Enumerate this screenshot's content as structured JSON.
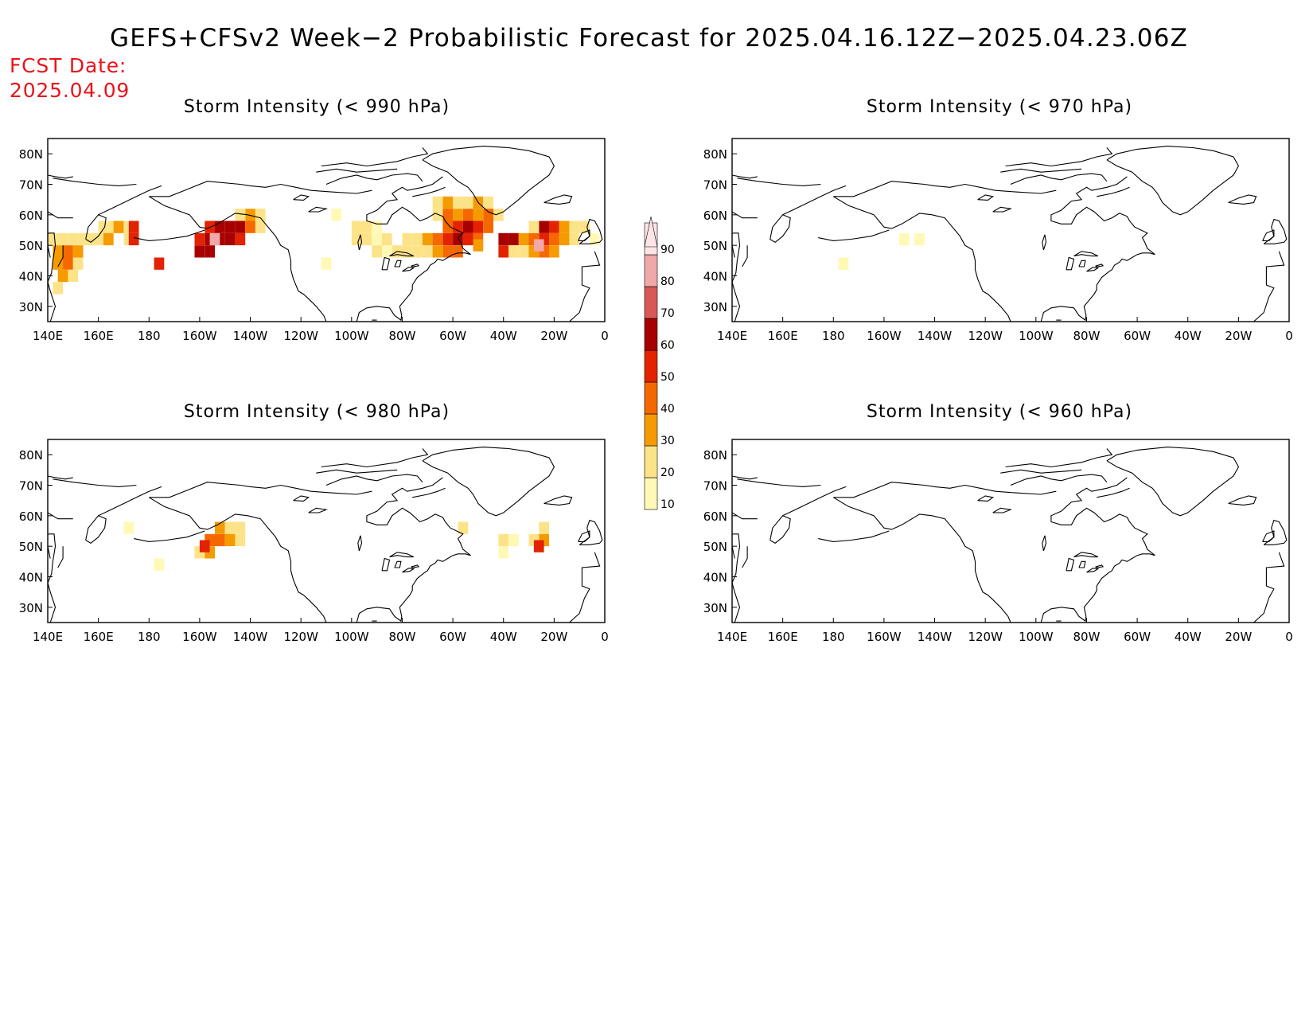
{
  "title": "GEFS+CFSv2 Week−2 Probabilistic Forecast for 2025.04.16.12Z−2025.04.23.06Z",
  "fcst_date_label": "FCST Date:",
  "fcst_date_value": "2025.04.09",
  "axes": {
    "x_ticks": [
      "140E",
      "160E",
      "180",
      "160W",
      "140W",
      "120W",
      "100W",
      "80W",
      "60W",
      "40W",
      "20W",
      "0"
    ],
    "x_tick_values": [
      140,
      160,
      180,
      200,
      220,
      240,
      260,
      280,
      300,
      320,
      340,
      360
    ],
    "y_ticks": [
      "30N",
      "40N",
      "50N",
      "60N",
      "70N",
      "80N"
    ],
    "y_tick_values": [
      30,
      40,
      50,
      60,
      70,
      80
    ],
    "lon_range": [
      140,
      360
    ],
    "lat_range": [
      25,
      85
    ]
  },
  "colorbar": {
    "levels": [
      "10",
      "20",
      "30",
      "40",
      "50",
      "60",
      "70",
      "80",
      "90"
    ],
    "colors": [
      "#fff9b5",
      "#fde388",
      "#f59b00",
      "#f56800",
      "#e32200",
      "#a80000",
      "#d85858",
      "#f1a8a8",
      "#fde5e5"
    ]
  },
  "panels": [
    {
      "id": "990",
      "title": "Storm Intensity (< 990 hPa)",
      "cells": [
        [
          142,
          52,
          20
        ],
        [
          146,
          52,
          20
        ],
        [
          150,
          52,
          20
        ],
        [
          154,
          52,
          20
        ],
        [
          158,
          52,
          20
        ],
        [
          162,
          56,
          20
        ],
        [
          166,
          56,
          20
        ],
        [
          170,
          56,
          20
        ],
        [
          144,
          48,
          30
        ],
        [
          148,
          48,
          40
        ],
        [
          152,
          48,
          30
        ],
        [
          156,
          52,
          20
        ],
        [
          160,
          52,
          20
        ],
        [
          164,
          52,
          30
        ],
        [
          168,
          56,
          30
        ],
        [
          172,
          52,
          20
        ],
        [
          144,
          44,
          30
        ],
        [
          148,
          44,
          40
        ],
        [
          152,
          44,
          20
        ],
        [
          146,
          40,
          30
        ],
        [
          150,
          40,
          20
        ],
        [
          144,
          36,
          20
        ],
        [
          174,
          56,
          50
        ],
        [
          174,
          52,
          50
        ],
        [
          184,
          44,
          50
        ],
        [
          200,
          48,
          60
        ],
        [
          204,
          48,
          60
        ],
        [
          204,
          52,
          60
        ],
        [
          208,
          52,
          60
        ],
        [
          208,
          56,
          60
        ],
        [
          212,
          56,
          60
        ],
        [
          216,
          56,
          60
        ],
        [
          212,
          52,
          60
        ],
        [
          200,
          52,
          50
        ],
        [
          204,
          56,
          50
        ],
        [
          216,
          52,
          50
        ],
        [
          220,
          56,
          40
        ],
        [
          220,
          60,
          30
        ],
        [
          216,
          60,
          20
        ],
        [
          224,
          60,
          20
        ],
        [
          224,
          56,
          20
        ],
        [
          206,
          52,
          80
        ],
        [
          250,
          44,
          10
        ],
        [
          262,
          56,
          20
        ],
        [
          262,
          52,
          20
        ],
        [
          266,
          56,
          20
        ],
        [
          270,
          56,
          10
        ],
        [
          266,
          52,
          20
        ],
        [
          270,
          52,
          10
        ],
        [
          274,
          52,
          20
        ],
        [
          270,
          48,
          20
        ],
        [
          274,
          48,
          10
        ],
        [
          278,
          48,
          20
        ],
        [
          282,
          48,
          20
        ],
        [
          286,
          48,
          20
        ],
        [
          286,
          52,
          20
        ],
        [
          282,
          52,
          20
        ],
        [
          254,
          60,
          10
        ],
        [
          290,
          52,
          30
        ],
        [
          290,
          48,
          20
        ],
        [
          294,
          52,
          40
        ],
        [
          298,
          52,
          50
        ],
        [
          298,
          48,
          40
        ],
        [
          294,
          48,
          30
        ],
        [
          298,
          56,
          40
        ],
        [
          302,
          56,
          50
        ],
        [
          302,
          52,
          60
        ],
        [
          302,
          48,
          40
        ],
        [
          306,
          52,
          50
        ],
        [
          310,
          52,
          40
        ],
        [
          306,
          56,
          60
        ],
        [
          310,
          56,
          50
        ],
        [
          314,
          56,
          40
        ],
        [
          298,
          60,
          40
        ],
        [
          302,
          60,
          30
        ],
        [
          306,
          60,
          40
        ],
        [
          310,
          60,
          30
        ],
        [
          314,
          60,
          40
        ],
        [
          318,
          60,
          20
        ],
        [
          302,
          64,
          20
        ],
        [
          306,
          64,
          20
        ],
        [
          310,
          64,
          30
        ],
        [
          314,
          64,
          20
        ],
        [
          298,
          64,
          30
        ],
        [
          294,
          64,
          20
        ],
        [
          294,
          60,
          20
        ],
        [
          310,
          50,
          30
        ],
        [
          320,
          48,
          50
        ],
        [
          320,
          52,
          60
        ],
        [
          324,
          52,
          60
        ],
        [
          328,
          52,
          30
        ],
        [
          328,
          48,
          20
        ],
        [
          332,
          48,
          30
        ],
        [
          332,
          52,
          40
        ],
        [
          336,
          52,
          50
        ],
        [
          336,
          56,
          60
        ],
        [
          340,
          56,
          50
        ],
        [
          344,
          56,
          30
        ],
        [
          344,
          52,
          30
        ],
        [
          340,
          52,
          40
        ],
        [
          340,
          48,
          30
        ],
        [
          336,
          48,
          40
        ],
        [
          324,
          48,
          20
        ],
        [
          348,
          56,
          20
        ],
        [
          348,
          52,
          20
        ],
        [
          352,
          56,
          20
        ],
        [
          356,
          52,
          10
        ],
        [
          332,
          56,
          20
        ],
        [
          334,
          50,
          80
        ]
      ]
    },
    {
      "id": "970",
      "title": "Storm Intensity (< 970 hPa)",
      "cells": [
        [
          208,
          52,
          10
        ],
        [
          214,
          52,
          10
        ],
        [
          184,
          44,
          10
        ]
      ]
    },
    {
      "id": "980",
      "title": "Storm Intensity (< 980 hPa)",
      "cells": [
        [
          172,
          56,
          10
        ],
        [
          184,
          44,
          10
        ],
        [
          200,
          48,
          20
        ],
        [
          204,
          48,
          30
        ],
        [
          204,
          52,
          40
        ],
        [
          208,
          52,
          40
        ],
        [
          208,
          56,
          30
        ],
        [
          212,
          56,
          20
        ],
        [
          216,
          56,
          20
        ],
        [
          212,
          52,
          30
        ],
        [
          216,
          52,
          20
        ],
        [
          202,
          50,
          50
        ],
        [
          304,
          56,
          20
        ],
        [
          320,
          52,
          20
        ],
        [
          320,
          48,
          10
        ],
        [
          324,
          52,
          10
        ],
        [
          332,
          52,
          20
        ],
        [
          336,
          52,
          30
        ],
        [
          336,
          56,
          20
        ],
        [
          334,
          50,
          50
        ]
      ]
    },
    {
      "id": "960",
      "title": "Storm Intensity (< 960 hPa)",
      "cells": []
    }
  ]
}
